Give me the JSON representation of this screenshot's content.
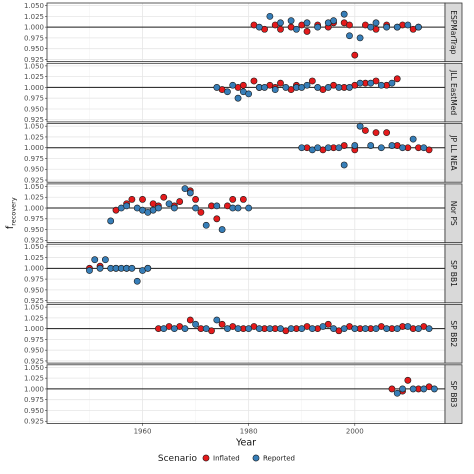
{
  "chart_data": {
    "type": "scatter",
    "xlabel": "Year",
    "ylabel": "f",
    "ylabel_subscript": "recovery",
    "xlim": [
      1942,
      2017
    ],
    "ylim": [
      0.92,
      1.056
    ],
    "x_ticks": [
      1960,
      1980,
      2000
    ],
    "y_ticks": [
      0.925,
      0.95,
      0.975,
      1.0,
      1.025,
      1.05
    ],
    "y_tick_labels": [
      "0.925",
      "0.950",
      "0.975",
      "1.000",
      "1.025",
      "1.050"
    ],
    "reference_line": 1.0,
    "grid": true,
    "legend": {
      "title": "Scenario",
      "placement": "bottom",
      "entries": [
        {
          "name": "Inflated",
          "color": "#e41a1c"
        },
        {
          "name": "Reported",
          "color": "#377eb8"
        }
      ]
    },
    "colors": {
      "Inflated": "#e41a1c",
      "Reported": "#377eb8"
    },
    "panels": [
      {
        "label": "ESPMarTrap",
        "series": [
          {
            "name": "Inflated",
            "points": [
              [
                1981,
                1.005
              ],
              [
                1983,
                0.995
              ],
              [
                1985,
                1.005
              ],
              [
                1986,
                0.995
              ],
              [
                1988,
                1.0
              ],
              [
                1990,
                1.005
              ],
              [
                1991,
                0.99
              ],
              [
                1993,
                1.005
              ],
              [
                1995,
                1.0
              ],
              [
                1996,
                1.01
              ],
              [
                1998,
                1.01
              ],
              [
                1999,
                1.005
              ],
              [
                2000,
                0.935
              ],
              [
                2002,
                1.005
              ],
              [
                2004,
                0.995
              ],
              [
                2006,
                1.005
              ],
              [
                2008,
                1.0
              ],
              [
                2009,
                1.005
              ],
              [
                2011,
                0.995
              ],
              [
                2012,
                1.0
              ]
            ]
          },
          {
            "name": "Reported",
            "points": [
              [
                1982,
                1.0
              ],
              [
                1984,
                1.025
              ],
              [
                1986,
                1.01
              ],
              [
                1988,
                1.015
              ],
              [
                1989,
                0.995
              ],
              [
                1991,
                1.01
              ],
              [
                1993,
                1.0
              ],
              [
                1995,
                1.01
              ],
              [
                1996,
                1.015
              ],
              [
                1998,
                1.03
              ],
              [
                1999,
                0.98
              ],
              [
                2001,
                0.975
              ],
              [
                2003,
                1.0
              ],
              [
                2004,
                1.01
              ],
              [
                2006,
                1.0
              ],
              [
                2008,
                1.0
              ],
              [
                2010,
                1.005
              ],
              [
                2012,
                1.0
              ]
            ]
          }
        ]
      },
      {
        "label": "JLL EastMed",
        "series": [
          {
            "name": "Inflated",
            "points": [
              [
                1975,
                0.995
              ],
              [
                1978,
                1.0
              ],
              [
                1979,
                1.005
              ],
              [
                1981,
                1.015
              ],
              [
                1982,
                1.0
              ],
              [
                1984,
                1.005
              ],
              [
                1985,
                1.0
              ],
              [
                1986,
                1.01
              ],
              [
                1988,
                0.995
              ],
              [
                1989,
                1.005
              ],
              [
                1992,
                1.015
              ],
              [
                1994,
                0.995
              ],
              [
                1996,
                1.005
              ],
              [
                1998,
                1.0
              ],
              [
                2000,
                1.005
              ],
              [
                2002,
                1.01
              ],
              [
                2004,
                1.015
              ],
              [
                2006,
                1.005
              ],
              [
                2008,
                1.02
              ]
            ]
          },
          {
            "name": "Reported",
            "points": [
              [
                1974,
                1.0
              ],
              [
                1976,
                0.99
              ],
              [
                1977,
                1.005
              ],
              [
                1978,
                0.975
              ],
              [
                1979,
                0.99
              ],
              [
                1980,
                0.985
              ],
              [
                1982,
                1.0
              ],
              [
                1983,
                1.0
              ],
              [
                1985,
                0.995
              ],
              [
                1987,
                1.0
              ],
              [
                1989,
                1.0
              ],
              [
                1990,
                1.0
              ],
              [
                1991,
                1.005
              ],
              [
                1993,
                1.0
              ],
              [
                1995,
                1.0
              ],
              [
                1997,
                1.0
              ],
              [
                1999,
                1.0
              ],
              [
                2001,
                1.01
              ],
              [
                2003,
                1.01
              ],
              [
                2005,
                1.005
              ],
              [
                2007,
                1.01
              ]
            ]
          }
        ]
      },
      {
        "label": "JP LL NEA",
        "series": [
          {
            "name": "Inflated",
            "points": [
              [
                1991,
                1.0
              ],
              [
                1994,
                0.995
              ],
              [
                1996,
                1.0
              ],
              [
                1998,
                1.005
              ],
              [
                2000,
                0.995
              ],
              [
                2002,
                1.04
              ],
              [
                2004,
                1.035
              ],
              [
                2006,
                1.035
              ],
              [
                2008,
                1.005
              ],
              [
                2010,
                1.0
              ],
              [
                2012,
                1.0
              ],
              [
                2014,
                0.995
              ]
            ]
          },
          {
            "name": "Reported",
            "points": [
              [
                1990,
                1.0
              ],
              [
                1992,
                0.995
              ],
              [
                1993,
                1.0
              ],
              [
                1995,
                1.0
              ],
              [
                1997,
                1.0
              ],
              [
                1998,
                0.96
              ],
              [
                2000,
                1.005
              ],
              [
                2001,
                1.05
              ],
              [
                2003,
                1.005
              ],
              [
                2005,
                1.0
              ],
              [
                2007,
                1.005
              ],
              [
                2009,
                1.0
              ],
              [
                2011,
                1.02
              ],
              [
                2013,
                1.0
              ]
            ]
          }
        ]
      },
      {
        "label": "Nor PS",
        "series": [
          {
            "name": "Inflated",
            "points": [
              [
                1955,
                0.995
              ],
              [
                1957,
                1.01
              ],
              [
                1958,
                1.02
              ],
              [
                1960,
                1.02
              ],
              [
                1962,
                1.01
              ],
              [
                1963,
                1.005
              ],
              [
                1964,
                1.025
              ],
              [
                1966,
                1.005
              ],
              [
                1967,
                1.015
              ],
              [
                1969,
                1.04
              ],
              [
                1970,
                1.02
              ],
              [
                1971,
                0.99
              ],
              [
                1973,
                1.005
              ],
              [
                1974,
                0.975
              ],
              [
                1976,
                1.005
              ],
              [
                1977,
                1.02
              ],
              [
                1979,
                1.02
              ]
            ]
          },
          {
            "name": "Reported",
            "points": [
              [
                1954,
                0.97
              ],
              [
                1956,
                1.0
              ],
              [
                1957,
                1.005
              ],
              [
                1959,
                1.0
              ],
              [
                1960,
                0.995
              ],
              [
                1961,
                0.99
              ],
              [
                1962,
                0.995
              ],
              [
                1963,
                1.0
              ],
              [
                1965,
                1.01
              ],
              [
                1966,
                1.0
              ],
              [
                1968,
                1.045
              ],
              [
                1969,
                1.035
              ],
              [
                1970,
                1.0
              ],
              [
                1972,
                0.96
              ],
              [
                1974,
                1.005
              ],
              [
                1975,
                0.95
              ],
              [
                1977,
                1.0
              ],
              [
                1978,
                1.0
              ],
              [
                1980,
                1.0
              ]
            ]
          }
        ]
      },
      {
        "label": "SP BB1",
        "series": [
          {
            "name": "Inflated",
            "points": [
              [
                1950,
                1.0
              ],
              [
                1952,
                1.005
              ],
              [
                1955,
                1.0
              ],
              [
                1957,
                1.0
              ],
              [
                1961,
                1.0
              ]
            ]
          },
          {
            "name": "Reported",
            "points": [
              [
                1950,
                0.995
              ],
              [
                1951,
                1.02
              ],
              [
                1952,
                1.0
              ],
              [
                1953,
                1.02
              ],
              [
                1954,
                1.0
              ],
              [
                1955,
                1.0
              ],
              [
                1956,
                1.0
              ],
              [
                1957,
                1.0
              ],
              [
                1958,
                1.0
              ],
              [
                1959,
                0.97
              ],
              [
                1960,
                0.995
              ],
              [
                1961,
                1.0
              ]
            ]
          }
        ]
      },
      {
        "label": "SP BB2",
        "series": [
          {
            "name": "Inflated",
            "points": [
              [
                1963,
                1.0
              ],
              [
                1965,
                1.005
              ],
              [
                1967,
                1.005
              ],
              [
                1969,
                1.02
              ],
              [
                1971,
                1.0
              ],
              [
                1973,
                0.995
              ],
              [
                1975,
                1.01
              ],
              [
                1977,
                1.005
              ],
              [
                1979,
                1.0
              ],
              [
                1981,
                1.005
              ],
              [
                1983,
                1.0
              ],
              [
                1985,
                1.0
              ],
              [
                1987,
                0.995
              ],
              [
                1989,
                1.0
              ],
              [
                1991,
                1.005
              ],
              [
                1993,
                1.0
              ],
              [
                1995,
                1.01
              ],
              [
                1997,
                0.995
              ],
              [
                1999,
                1.005
              ],
              [
                2001,
                1.0
              ],
              [
                2003,
                1.0
              ],
              [
                2005,
                1.005
              ],
              [
                2007,
                1.0
              ],
              [
                2009,
                1.005
              ],
              [
                2011,
                1.0
              ],
              [
                2013,
                1.005
              ]
            ]
          },
          {
            "name": "Reported",
            "points": [
              [
                1964,
                1.0
              ],
              [
                1966,
                1.0
              ],
              [
                1968,
                1.0
              ],
              [
                1970,
                1.01
              ],
              [
                1972,
                1.0
              ],
              [
                1974,
                1.02
              ],
              [
                1976,
                1.0
              ],
              [
                1978,
                1.0
              ],
              [
                1980,
                1.0
              ],
              [
                1982,
                1.0
              ],
              [
                1984,
                1.0
              ],
              [
                1986,
                1.0
              ],
              [
                1988,
                1.0
              ],
              [
                1990,
                1.0
              ],
              [
                1992,
                1.0
              ],
              [
                1994,
                1.005
              ],
              [
                1996,
                1.0
              ],
              [
                1998,
                1.0
              ],
              [
                2000,
                1.0
              ],
              [
                2002,
                1.0
              ],
              [
                2004,
                1.0
              ],
              [
                2006,
                1.0
              ],
              [
                2008,
                1.0
              ],
              [
                2010,
                1.005
              ],
              [
                2012,
                1.0
              ],
              [
                2014,
                1.0
              ]
            ]
          }
        ]
      },
      {
        "label": "SP BB3",
        "series": [
          {
            "name": "Inflated",
            "points": [
              [
                2007,
                1.0
              ],
              [
                2009,
                0.995
              ],
              [
                2010,
                1.02
              ],
              [
                2012,
                1.0
              ],
              [
                2014,
                1.005
              ]
            ]
          },
          {
            "name": "Reported",
            "points": [
              [
                2008,
                0.99
              ],
              [
                2009,
                1.0
              ],
              [
                2011,
                1.0
              ],
              [
                2013,
                1.0
              ],
              [
                2015,
                1.0
              ]
            ]
          }
        ]
      }
    ]
  }
}
